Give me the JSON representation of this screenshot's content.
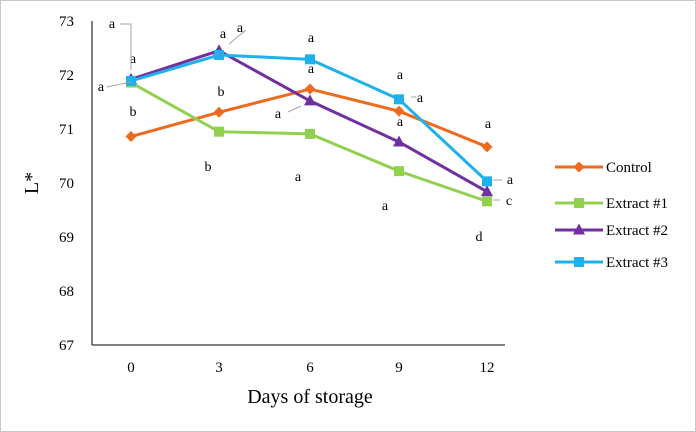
{
  "chart_data": {
    "type": "line",
    "xlabel": "Days of storage",
    "ylabel": "L*",
    "x": [
      0,
      3,
      6,
      9,
      12
    ],
    "ylim": [
      67,
      73
    ],
    "yticks": [
      67,
      68,
      69,
      70,
      71,
      72,
      73
    ],
    "grid": false,
    "legend_position": "right",
    "series": [
      {
        "name": "Control",
        "color": "#ED6A1F",
        "marker": "diamond",
        "values": [
          70.86,
          71.31,
          71.74,
          71.33,
          70.67
        ],
        "labels": [
          "b",
          "b",
          "a",
          "a",
          "a"
        ]
      },
      {
        "name": "Extract #1",
        "color": "#92D050",
        "marker": "square",
        "values": [
          71.86,
          70.95,
          70.91,
          70.22,
          69.66
        ],
        "labels": [
          "a",
          "b",
          "a",
          "a",
          "d"
        ]
      },
      {
        "name": "Extract #2",
        "color": "#7030A0",
        "marker": "triangle",
        "values": [
          71.92,
          72.45,
          71.52,
          70.76,
          69.84
        ],
        "labels": [
          "a",
          "a",
          "a",
          "a",
          "c"
        ]
      },
      {
        "name": "Extract #3",
        "color": "#1FB1EC",
        "marker": "square",
        "values": [
          71.89,
          72.37,
          72.29,
          71.55,
          70.03
        ],
        "labels": [
          "a",
          "a",
          "a",
          "a",
          "a"
        ]
      }
    ]
  }
}
